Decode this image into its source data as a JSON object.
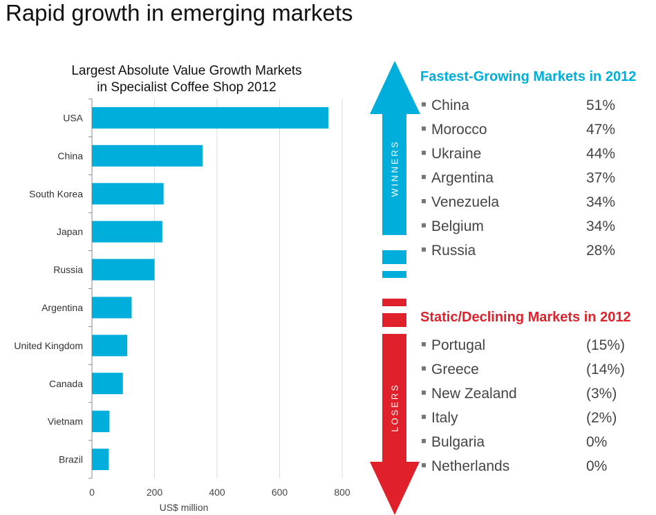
{
  "slide_title": "Rapid growth in emerging markets",
  "chart_data": {
    "type": "bar",
    "orientation": "horizontal",
    "title": "Largest Absolute Value Growth Markets in Specialist Coffee Shop 2012",
    "title_lines": [
      "Largest Absolute Value Growth Markets",
      "in Specialist Coffee Shop 2012"
    ],
    "categories": [
      "USA",
      "China",
      "South Korea",
      "Japan",
      "Russia",
      "Argentina",
      "United Kingdom",
      "Canada",
      "Vietnam",
      "Brazil"
    ],
    "values": [
      756,
      354,
      229,
      225,
      200,
      127,
      113,
      99,
      56,
      54
    ],
    "xlabel": "US$ million",
    "ylabel": "",
    "xlim": [
      0,
      800
    ],
    "xticks": [
      "0",
      "200",
      "400",
      "600",
      "800"
    ],
    "grid": true,
    "color": "#00AEDB"
  },
  "winners": {
    "label": "WINNERS",
    "title": "Fastest-Growing Markets in 2012",
    "color": "#00AEDB",
    "items": [
      {
        "name": "China",
        "value": "51%"
      },
      {
        "name": "Morocco",
        "value": "47%"
      },
      {
        "name": "Ukraine",
        "value": "44%"
      },
      {
        "name": "Argentina",
        "value": "37%"
      },
      {
        "name": "Venezuela",
        "value": "34%"
      },
      {
        "name": "Belgium",
        "value": "34%"
      },
      {
        "name": "Russia",
        "value": "28%"
      }
    ]
  },
  "losers": {
    "label": "LOSERS",
    "title": "Static/Declining Markets in 2012",
    "color": "#E0202A",
    "items": [
      {
        "name": "Portugal",
        "value": "(15%)"
      },
      {
        "name": "Greece",
        "value": "(14%)"
      },
      {
        "name": "New Zealand",
        "value": "(3%)"
      },
      {
        "name": "Italy",
        "value": "(2%)"
      },
      {
        "name": "Bulgaria",
        "value": "0%"
      },
      {
        "name": "Netherlands",
        "value": "0%"
      }
    ]
  }
}
